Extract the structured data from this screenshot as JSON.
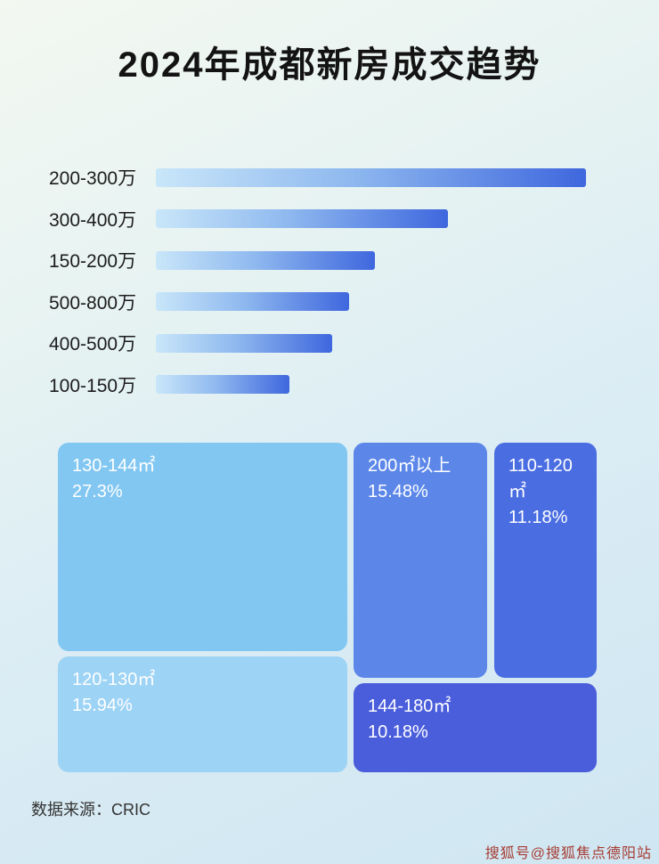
{
  "title": "2024年成都新房成交趋势",
  "footer": {
    "source_label": "数据来源：CRIC"
  },
  "watermark": "搜狐号@搜狐焦点德阳站",
  "colors": {
    "background_top": "#f3f8f1",
    "background_bottom": "#cfe6f2",
    "bar_gradient_start": "#c9e6f9",
    "bar_gradient_end": "#3f67de",
    "title_color": "#131313",
    "watermark_color": "#a63c32"
  },
  "chart_data": [
    {
      "type": "bar",
      "orientation": "horizontal",
      "title": "2024年成都新房成交趋势",
      "xlabel": "",
      "ylabel": "",
      "axis_ticks_visible": false,
      "categories": [
        "200-300万",
        "300-400万",
        "150-200万",
        "500-800万",
        "400-500万",
        "100-150万"
      ],
      "values_pct_of_max": [
        100,
        68,
        51,
        45,
        41,
        31
      ]
    },
    {
      "type": "treemap",
      "items": [
        {
          "label": "130-144㎡",
          "value": 27.3,
          "display": "27.3%",
          "color": "#82c7f2"
        },
        {
          "label": "120-130㎡",
          "value": 15.94,
          "display": "15.94%",
          "color": "#9dd3f5"
        },
        {
          "label": "200㎡以上",
          "value": 15.48,
          "display": "15.48%",
          "color": "#5c87e9"
        },
        {
          "label": "110-120㎡",
          "value": 11.18,
          "display": "11.18%",
          "color": "#4a6de2"
        },
        {
          "label": "144-180㎡",
          "value": 10.18,
          "display": "10.18%",
          "color": "#4a5edc"
        }
      ]
    }
  ]
}
